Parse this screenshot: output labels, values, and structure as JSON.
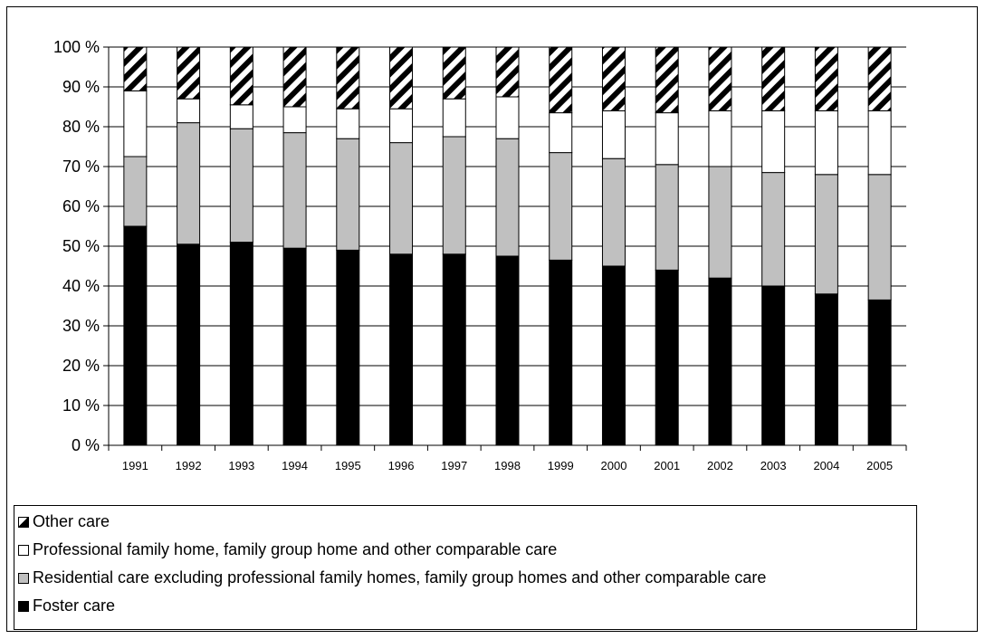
{
  "chart_data": {
    "type": "bar",
    "stacked": true,
    "categories": [
      "1991",
      "1992",
      "1993",
      "1994",
      "1995",
      "1996",
      "1997",
      "1998",
      "1999",
      "2000",
      "2001",
      "2002",
      "2003",
      "2004",
      "2005"
    ],
    "y_tick_labels": [
      "0 %",
      "10 %",
      "20 %",
      "30 %",
      "40 %",
      "50 %",
      "60 %",
      "70 %",
      "80 %",
      "90 %",
      "100 %"
    ],
    "ylim": [
      0,
      100
    ],
    "grid": true,
    "legend_position": "bottom",
    "series": [
      {
        "name": "Foster care",
        "color": "#000000",
        "pattern": "solid",
        "values": [
          55,
          50.5,
          51,
          49.5,
          49,
          48,
          48,
          47.5,
          46.5,
          45,
          44,
          42,
          40,
          38,
          36.5
        ]
      },
      {
        "name": "Residential care excluding professional family homes, family group homes and other comparable care",
        "color": "#c0c0c0",
        "pattern": "solid",
        "values": [
          17.5,
          30.5,
          28.5,
          29,
          28,
          28,
          29.5,
          29.5,
          27,
          27,
          26.5,
          28,
          28.5,
          30,
          31.5
        ]
      },
      {
        "name": "Professional family home, family group home and other comparable care",
        "color": "#ffffff",
        "pattern": "solid",
        "values": [
          16.5,
          6,
          6,
          6.5,
          7.5,
          8.5,
          9.5,
          10.5,
          10,
          12,
          13,
          14,
          15.5,
          16,
          16
        ]
      },
      {
        "name": "Other care",
        "color": "#000000",
        "pattern": "hatch",
        "values": [
          11,
          13,
          14.5,
          15,
          15.5,
          15.5,
          13,
          12.5,
          16.5,
          16,
          16.5,
          16,
          16,
          16,
          16
        ]
      }
    ],
    "legend_order": [
      3,
      2,
      1,
      0
    ]
  }
}
